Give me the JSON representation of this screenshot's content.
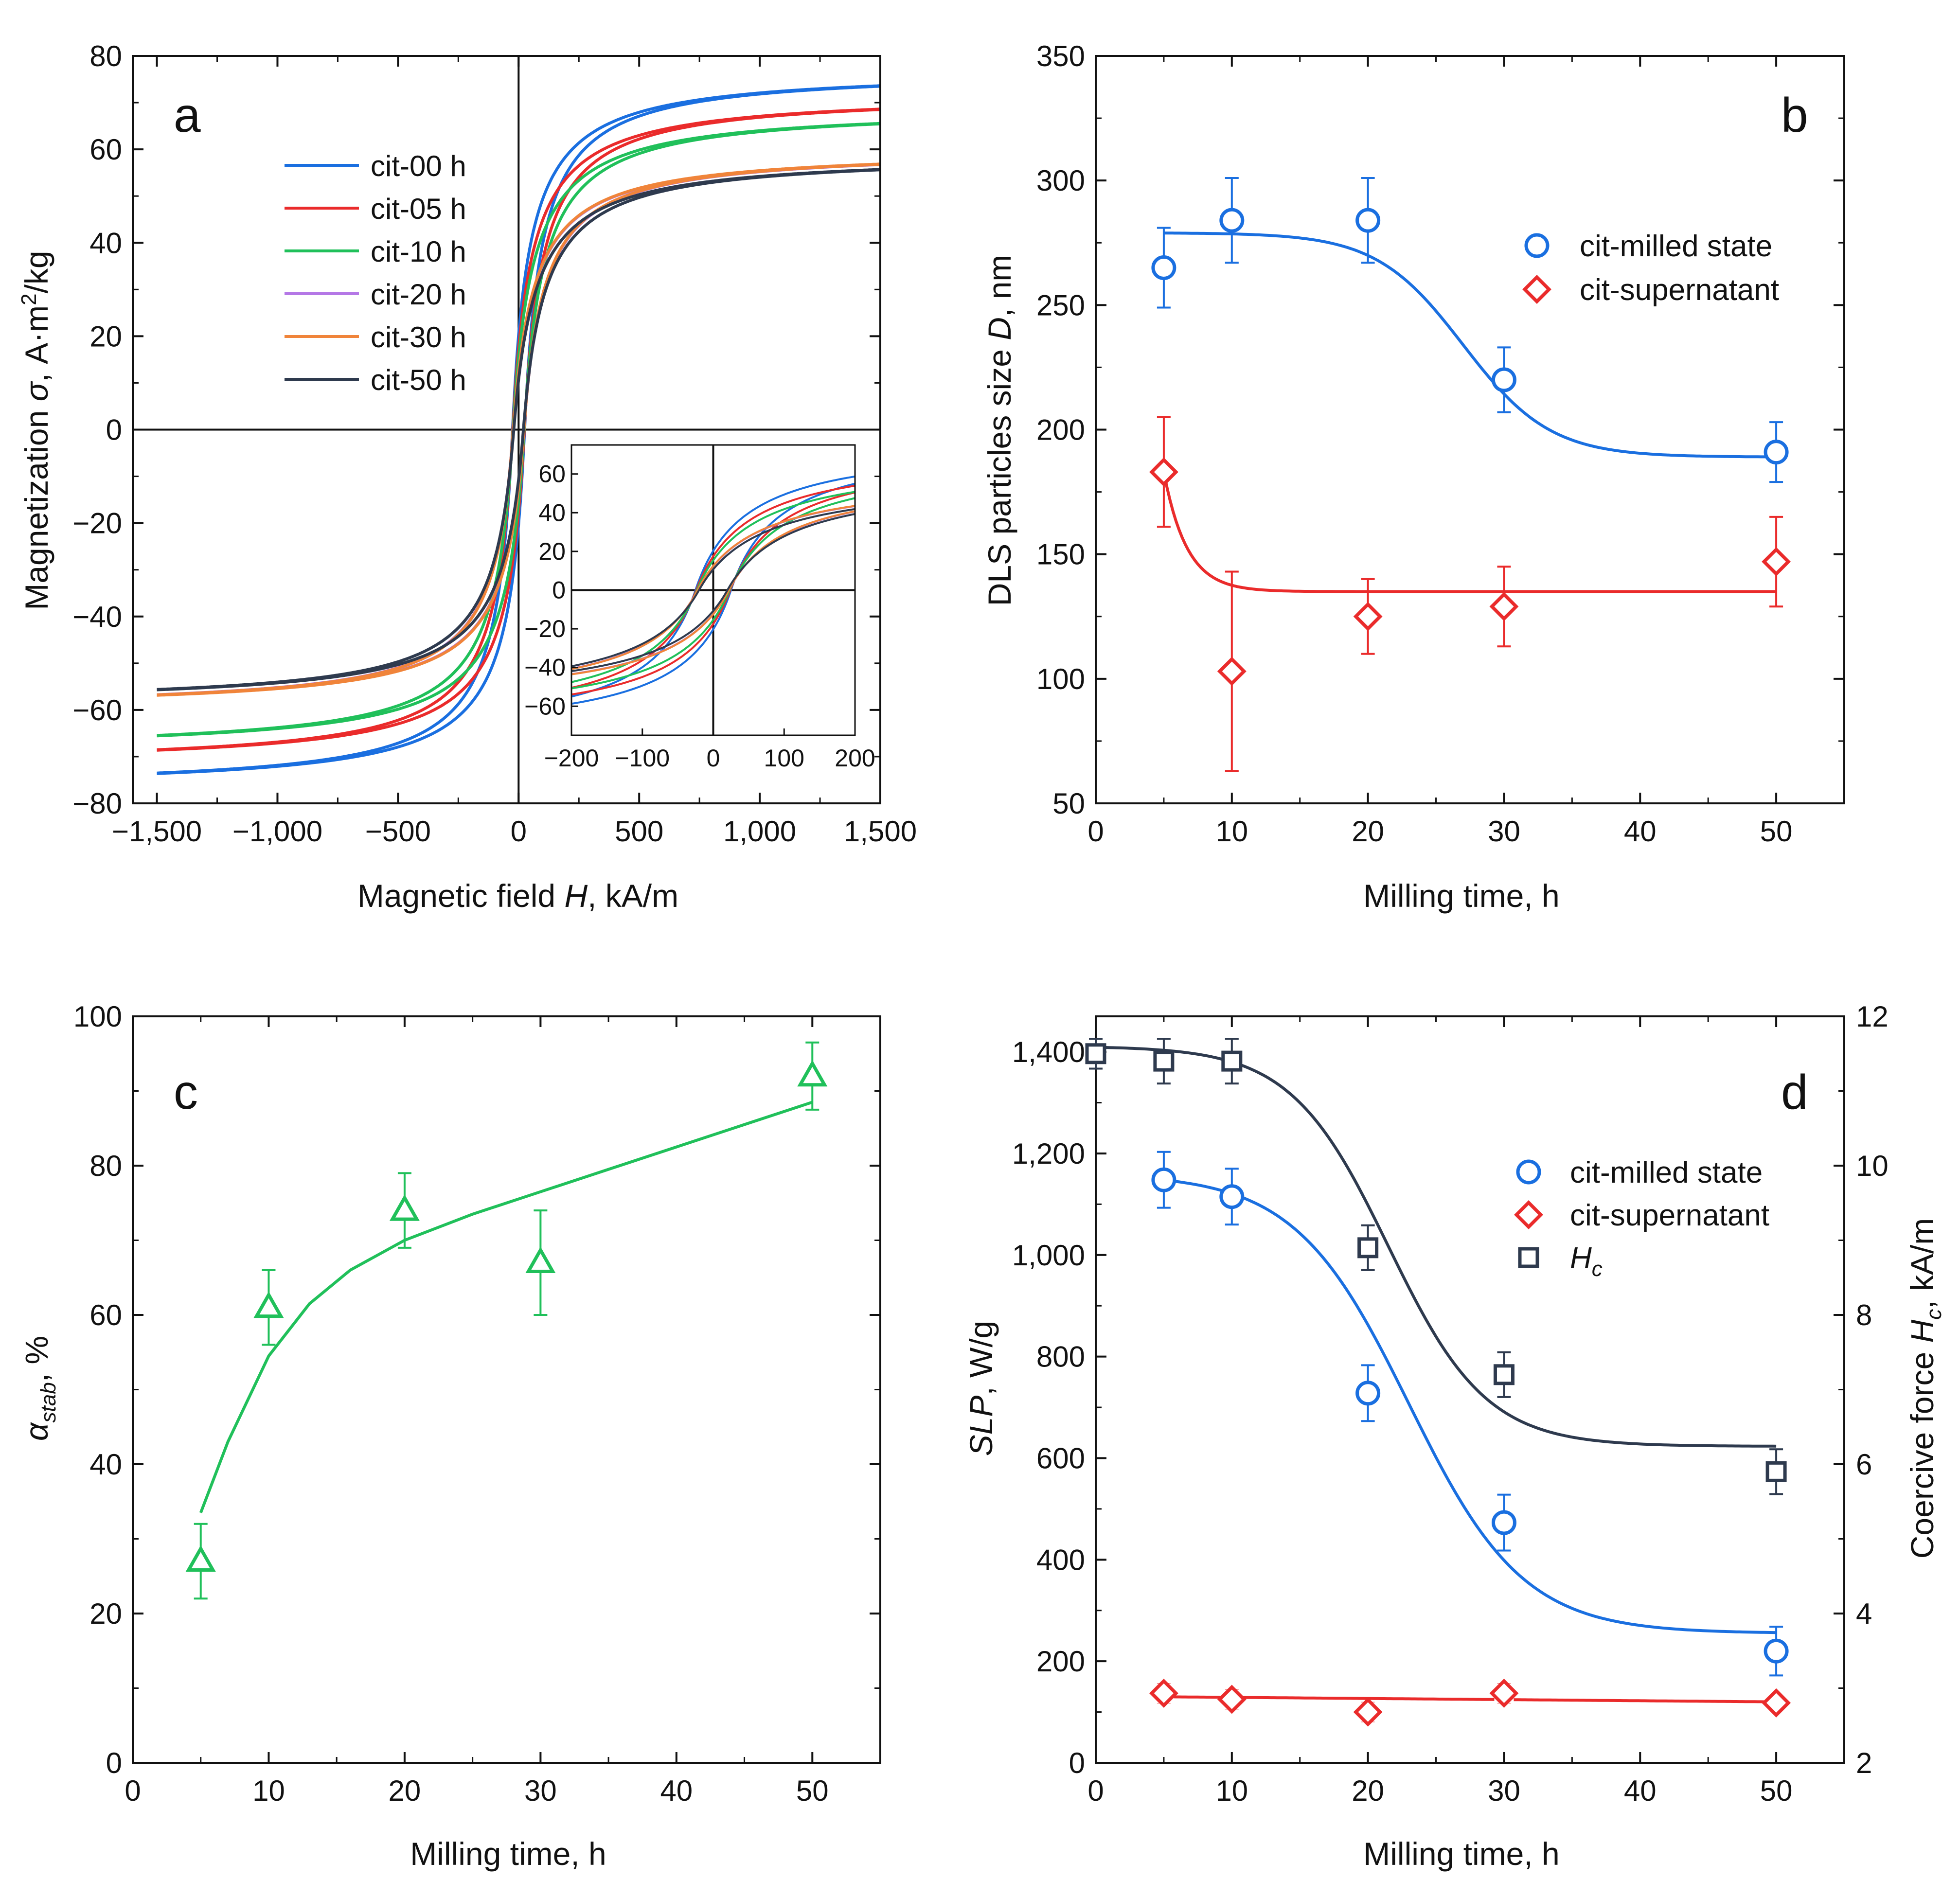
{
  "colors": {
    "blue": "#1a6fe0",
    "red": "#ea2b2b",
    "green": "#20c05a",
    "purple": "#b477e6",
    "orange": "#f0843a",
    "navy": "#2e3a4e",
    "axis": "#111111"
  },
  "chart_data": [
    {
      "panel": "a",
      "type": "line",
      "panel_label": "a",
      "xlabel": "Magnetic field H, kA/m",
      "xlabel_main": "Magnetic field ",
      "xlabel_var": "H",
      "xlabel_unit": ", kA/m",
      "ylabel": "Magnetization σ, A·m2/kg",
      "ylabel_main": "Magnetization ",
      "ylabel_var": "σ",
      "ylabel_unit": ", A·m",
      "ylabel_sup": "2",
      "ylabel_tail": "/kg",
      "xlim": [
        -1600,
        1500
      ],
      "ylim": [
        -80,
        80
      ],
      "xticks": [
        -1500,
        -1000,
        -500,
        0,
        500,
        1000,
        1500
      ],
      "xtick_labels": [
        "−1,500",
        "−1,000",
        "−500",
        "0",
        "500",
        "1,000",
        "1,500"
      ],
      "yticks": [
        -80,
        -60,
        -40,
        -20,
        0,
        20,
        40,
        60,
        80
      ],
      "ytick_labels": [
        "−80",
        "−60",
        "−40",
        "−20",
        "0",
        "20",
        "40",
        "60",
        "80"
      ],
      "legend_position": "upper-left",
      "series": [
        {
          "name": "cit-00 h",
          "Ms": 77,
          "Hsat": 70,
          "Hc": 25,
          "color_key": "blue"
        },
        {
          "name": "cit-05 h",
          "Ms": 72,
          "Hsat": 75,
          "Hc": 24,
          "color_key": "red"
        },
        {
          "name": "cit-10 h",
          "Ms": 69,
          "Hsat": 80,
          "Hc": 23,
          "color_key": "green"
        },
        {
          "name": "cit-20 h",
          "Ms": 60,
          "Hsat": 85,
          "Hc": 22,
          "color_key": "purple"
        },
        {
          "name": "cit-30 h",
          "Ms": 60,
          "Hsat": 84,
          "Hc": 22,
          "color_key": "orange"
        },
        {
          "name": "cit-50 h",
          "Ms": 59,
          "Hsat": 90,
          "Hc": 20,
          "color_key": "navy"
        }
      ],
      "inset": {
        "xlim": [
          -200,
          200
        ],
        "ylim": [
          -75,
          75
        ],
        "xticks": [
          -200,
          -100,
          0,
          100,
          200
        ],
        "xtick_labels": [
          "−200",
          "−100",
          "0",
          "100",
          "200"
        ],
        "yticks": [
          -60,
          -40,
          -20,
          0,
          20,
          40,
          60
        ],
        "ytick_labels": [
          "−60",
          "−40",
          "−20",
          "0",
          "20",
          "40",
          "60"
        ]
      }
    },
    {
      "panel": "b",
      "type": "scatter",
      "panel_label": "b",
      "xlabel": "Milling time, h",
      "ylabel": "DLS particles size D, nm",
      "ylabel_main": "DLS particles size ",
      "ylabel_var": "D",
      "ylabel_unit": ", nm",
      "xlim": [
        0,
        55
      ],
      "ylim": [
        50,
        350
      ],
      "xticks": [
        0,
        10,
        20,
        30,
        40,
        50
      ],
      "xtick_labels": [
        "0",
        "10",
        "20",
        "30",
        "40",
        "50"
      ],
      "yticks": [
        50,
        100,
        150,
        200,
        250,
        300,
        350
      ],
      "ytick_labels": [
        "50",
        "100",
        "150",
        "200",
        "250",
        "300",
        "350"
      ],
      "legend_position": "upper-right",
      "series": [
        {
          "name": "cit-milled state",
          "marker": "circle",
          "color_key": "blue",
          "x": [
            5,
            10,
            20,
            30,
            50
          ],
          "y": [
            265,
            284,
            284,
            220,
            191
          ],
          "err": [
            16,
            17,
            17,
            13,
            12
          ],
          "fit": {
            "kind": "sigmoid",
            "A1": 279,
            "A2": 189,
            "x0": 27,
            "dx": 3.2,
            "xmin": 5,
            "xmax": 50
          }
        },
        {
          "name": "cit-supernatant",
          "marker": "diamond",
          "color_key": "red",
          "x": [
            5,
            10,
            20,
            30,
            50
          ],
          "y": [
            183,
            103,
            125,
            129,
            147
          ],
          "err": [
            22,
            40,
            15,
            16,
            18
          ],
          "fit": {
            "kind": "exp",
            "base": 135,
            "amp": 48,
            "tau": 1.7,
            "x0": 5,
            "xmin": 5,
            "xmax": 50
          }
        }
      ]
    },
    {
      "panel": "c",
      "type": "scatter",
      "panel_label": "c",
      "xlabel": "Milling time, h",
      "ylabel": "αstab, %",
      "ylabel_var": "α",
      "ylabel_sub": "stab",
      "ylabel_unit": ", %",
      "xlim": [
        0,
        55
      ],
      "ylim": [
        0,
        100
      ],
      "xticks": [
        0,
        10,
        20,
        30,
        40,
        50
      ],
      "xtick_labels": [
        "0",
        "10",
        "20",
        "30",
        "40",
        "50"
      ],
      "yticks": [
        0,
        20,
        40,
        60,
        80,
        100
      ],
      "ytick_labels": [
        "0",
        "20",
        "40",
        "60",
        "80",
        "100"
      ],
      "series": [
        {
          "name": "alpha-stab",
          "marker": "triangle",
          "color_key": "green",
          "x": [
            5,
            10,
            20,
            30,
            50
          ],
          "y": [
            27,
            61,
            74,
            67,
            92
          ],
          "err": [
            5,
            5,
            5,
            7,
            4.5
          ],
          "fit": {
            "kind": "curve",
            "points": [
              [
                5,
                33.5
              ],
              [
                7,
                43
              ],
              [
                10,
                54.5
              ],
              [
                13,
                61.5
              ],
              [
                16,
                66
              ],
              [
                20,
                70
              ],
              [
                25,
                73.5
              ],
              [
                30,
                76.5
              ],
              [
                40,
                82.5
              ],
              [
                50,
                88.5
              ]
            ]
          }
        }
      ]
    },
    {
      "panel": "d",
      "type": "scatter",
      "panel_label": "d",
      "xlabel": "Milling time, h",
      "ylabel": "SLP, W/g",
      "ylabel_var": "SLP",
      "ylabel_unit": ", W/g",
      "ylabel_right": "Coercive force Hc, kA/m",
      "ylabel_right_main": "Coercive force ",
      "ylabel_right_var": "H",
      "ylabel_right_sub": "c",
      "ylabel_right_unit": ", kA/m",
      "xlim": [
        0,
        55
      ],
      "ylim": [
        0,
        1470
      ],
      "ylim_right": [
        2,
        12
      ],
      "xticks": [
        0,
        10,
        20,
        30,
        40,
        50
      ],
      "xtick_labels": [
        "0",
        "10",
        "20",
        "30",
        "40",
        "50"
      ],
      "yticks": [
        0,
        200,
        400,
        600,
        800,
        1000,
        1200,
        1400
      ],
      "ytick_labels": [
        "0",
        "200",
        "400",
        "600",
        "800",
        "1,000",
        "1,200",
        "1,400"
      ],
      "yticks_right": [
        2,
        4,
        6,
        8,
        10,
        12
      ],
      "ytick_right_labels": [
        "2",
        "4",
        "6",
        "8",
        "10",
        "12"
      ],
      "legend_position": "upper-right",
      "series": [
        {
          "name": "cit-milled state",
          "marker": "circle",
          "color_key": "blue",
          "axis": "left",
          "x": [
            5,
            10,
            20,
            30,
            50
          ],
          "y": [
            1148,
            1115,
            728,
            473,
            220
          ],
          "err": [
            55,
            55,
            55,
            55,
            48
          ],
          "fit": {
            "kind": "sigmoid",
            "A1": 1160,
            "A2": 255,
            "x0": 23,
            "dx": 4.2,
            "xmin": 5,
            "xmax": 50
          }
        },
        {
          "name": "cit-supernatant",
          "marker": "diamond",
          "color_key": "red",
          "axis": "left",
          "x": [
            5,
            10,
            20,
            30,
            50
          ],
          "y": [
            137,
            125,
            100,
            137,
            118
          ],
          "err": [
            18,
            18,
            18,
            18,
            15
          ],
          "fit": {
            "kind": "linear",
            "y0": 130,
            "y1": 120,
            "xmin": 5,
            "xmax": 50
          }
        },
        {
          "name": "Hc",
          "name_var": "H",
          "name_sub": "c",
          "marker": "square",
          "color_key": "navy",
          "axis": "right",
          "x": [
            0,
            5,
            10,
            20,
            30,
            50
          ],
          "y": [
            11.5,
            11.4,
            11.4,
            8.9,
            7.2,
            5.9
          ],
          "err": [
            0.2,
            0.3,
            0.3,
            0.3,
            0.3,
            0.3
          ],
          "fit": {
            "kind": "sigmoid",
            "A1": 11.6,
            "A2": 6.24,
            "x0": 21.5,
            "dx": 3.6,
            "xmin": 0,
            "xmax": 50
          }
        }
      ]
    }
  ]
}
